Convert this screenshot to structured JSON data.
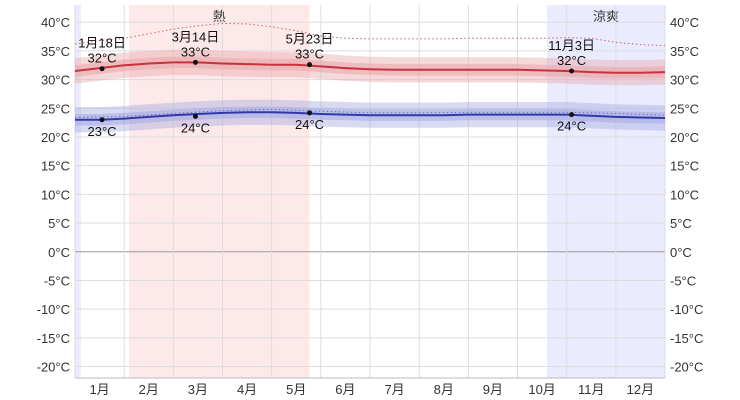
{
  "chart_data": {
    "type": "line",
    "x_categories": [
      "1月",
      "2月",
      "3月",
      "4月",
      "5月",
      "6月",
      "7月",
      "8月",
      "9月",
      "10月",
      "11月",
      "12月"
    ],
    "y_ticks": [
      "40°C",
      "35°C",
      "30°C",
      "25°C",
      "20°C",
      "15°C",
      "10°C",
      "5°C",
      "0°C",
      "-5°C",
      "-10°C",
      "-15°C",
      "-20°C"
    ],
    "ylim": [
      -22,
      43
    ],
    "grid": true,
    "seasons": [
      {
        "label": "熱",
        "start_month": 2.1,
        "end_month": 5.77,
        "color": "#fde9ea"
      },
      {
        "label": "涼爽",
        "start_month": 10.6,
        "end_month": 13,
        "color": "#ebebff"
      }
    ],
    "cool_strip_start": {
      "start_month": 1,
      "end_month": 1.12,
      "color": "#ebebff"
    },
    "series": [
      {
        "color": "#c8323c",
        "band_color": "#e9a9ae",
        "x": [
          1,
          1.5,
          2,
          2.5,
          3,
          3.5,
          4,
          4.5,
          5,
          5.5,
          6,
          6.5,
          7,
          7.5,
          8,
          8.5,
          9,
          9.5,
          10,
          10.5,
          11,
          11.5,
          12,
          12.5,
          13
        ],
        "values": [
          31.5,
          32,
          32.5,
          32.8,
          33,
          33,
          32.8,
          32.7,
          32.6,
          32.6,
          32.3,
          32,
          31.8,
          31.7,
          31.7,
          31.7,
          31.7,
          31.7,
          31.7,
          31.6,
          31.5,
          31.3,
          31.2,
          31.2,
          31.3
        ]
      },
      {
        "color": "#2f3aa8",
        "band_color": "#a9aee2",
        "x": [
          1,
          1.5,
          2,
          2.5,
          3,
          3.5,
          4,
          4.5,
          5,
          5.5,
          6,
          6.5,
          7,
          7.5,
          8,
          8.5,
          9,
          9.5,
          10,
          10.5,
          11,
          11.5,
          12,
          12.5,
          13
        ],
        "values": [
          23,
          23,
          23.2,
          23.5,
          23.8,
          24,
          24.2,
          24.3,
          24.3,
          24.2,
          24,
          23.9,
          23.8,
          23.8,
          23.8,
          23.8,
          23.9,
          23.9,
          23.9,
          23.9,
          23.9,
          23.7,
          23.5,
          23.4,
          23.3
        ]
      }
    ],
    "dotted_series": [
      {
        "color": "#d0606a",
        "x": [
          1,
          1.5,
          2,
          2.5,
          3,
          3.5,
          4,
          4.5,
          5,
          5.5,
          6,
          6.5,
          7,
          7.5,
          8,
          8.5,
          9,
          9.5,
          10,
          10.5,
          11,
          11.5,
          12,
          12.5,
          13
        ],
        "values": [
          36.2,
          36.8,
          37.2,
          38,
          38.8,
          39.4,
          39.8,
          39.7,
          39.2,
          38.5,
          37.6,
          37.2,
          37.1,
          37.1,
          37.1,
          37.1,
          37.2,
          37.2,
          37.2,
          37.2,
          37.3,
          37.2,
          36.5,
          36.1,
          35.9
        ]
      },
      {
        "color": "#6a70c4",
        "x": [
          1,
          2,
          3,
          4,
          5,
          6,
          7,
          8,
          9,
          10,
          11,
          12,
          13
        ],
        "values": [
          23.4,
          23.6,
          24.1,
          24.6,
          24.8,
          24.5,
          24.2,
          24.2,
          24.3,
          24.3,
          24.3,
          24.1,
          23.8
        ]
      }
    ],
    "annotations": [
      {
        "date": "1月18日",
        "value_label": "32°C",
        "x": 1.55,
        "y": 31.9,
        "position": "above"
      },
      {
        "date": "3月14日",
        "value_label": "33°C",
        "x": 3.45,
        "y": 33.0,
        "position": "above"
      },
      {
        "date": "5月23日",
        "value_label": "33°C",
        "x": 5.77,
        "y": 32.6,
        "position": "above"
      },
      {
        "date": "11月3日",
        "value_label": "32°C",
        "x": 11.1,
        "y": 31.5,
        "position": "above"
      },
      {
        "date": "",
        "value_label": "23°C",
        "x": 1.55,
        "y": 23.0,
        "position": "below"
      },
      {
        "date": "",
        "value_label": "24°C",
        "x": 3.45,
        "y": 23.6,
        "position": "below"
      },
      {
        "date": "",
        "value_label": "24°C",
        "x": 5.77,
        "y": 24.2,
        "position": "below"
      },
      {
        "date": "",
        "value_label": "24°C",
        "x": 11.1,
        "y": 23.9,
        "position": "below"
      }
    ]
  }
}
